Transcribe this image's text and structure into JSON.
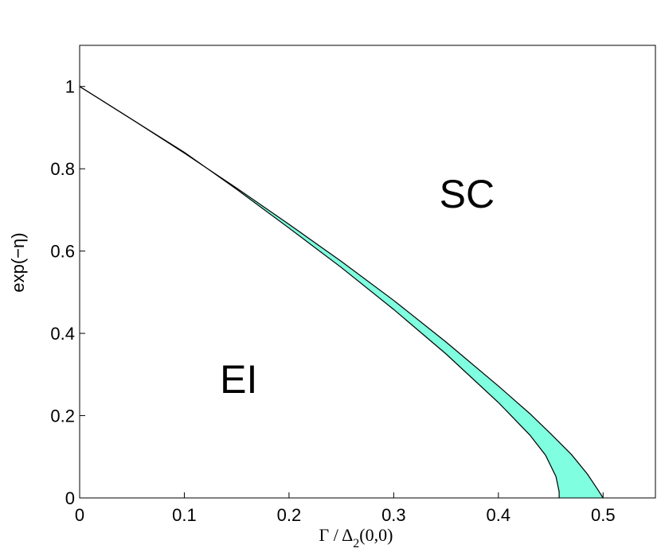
{
  "chart_data": {
    "type": "area",
    "xlabel": {
      "prefix": "Γ / Δ",
      "subscript": "2",
      "suffix": "(0,0)"
    },
    "ylabel": "exp(−η)",
    "xlim": [
      0,
      0.55
    ],
    "ylim": [
      0,
      1.1
    ],
    "xticks": [
      {
        "value": 0,
        "label": "0"
      },
      {
        "value": 0.1,
        "label": "0.1"
      },
      {
        "value": 0.2,
        "label": "0.2"
      },
      {
        "value": 0.3,
        "label": "0.3"
      },
      {
        "value": 0.4,
        "label": "0.4"
      },
      {
        "value": 0.5,
        "label": "0.5"
      }
    ],
    "yticks": [
      {
        "value": 0,
        "label": "0"
      },
      {
        "value": 0.2,
        "label": "0.2"
      },
      {
        "value": 0.4,
        "label": "0.4"
      },
      {
        "value": 0.6,
        "label": "0.6"
      },
      {
        "value": 0.8,
        "label": "0.8"
      },
      {
        "value": 1,
        "label": "1"
      }
    ],
    "region_labels": [
      {
        "text": "SC",
        "x": 0.37,
        "y": 0.74
      },
      {
        "text": "EI",
        "x": 0.152,
        "y": 0.29
      }
    ],
    "fill_color": "#7fffdf",
    "boundaries": [
      {
        "role": "upper",
        "points": [
          [
            0,
            1.0
          ],
          [
            0.05,
            0.92
          ],
          [
            0.1,
            0.838
          ],
          [
            0.15,
            0.753
          ],
          [
            0.2,
            0.665
          ],
          [
            0.25,
            0.575
          ],
          [
            0.3,
            0.48
          ],
          [
            0.35,
            0.379
          ],
          [
            0.4,
            0.272
          ],
          [
            0.43,
            0.205
          ],
          [
            0.45,
            0.156
          ],
          [
            0.47,
            0.105
          ],
          [
            0.485,
            0.058
          ],
          [
            0.495,
            0.02
          ],
          [
            0.5,
            0.0
          ]
        ]
      },
      {
        "role": "lower",
        "points": [
          [
            0,
            1.0
          ],
          [
            0.05,
            0.92
          ],
          [
            0.1,
            0.84
          ],
          [
            0.15,
            0.75
          ],
          [
            0.2,
            0.656
          ],
          [
            0.25,
            0.56
          ],
          [
            0.3,
            0.458
          ],
          [
            0.35,
            0.35
          ],
          [
            0.4,
            0.232
          ],
          [
            0.43,
            0.153
          ],
          [
            0.445,
            0.104
          ],
          [
            0.455,
            0.052
          ],
          [
            0.458,
            0.015
          ],
          [
            0.458,
            0.0
          ]
        ]
      }
    ]
  }
}
